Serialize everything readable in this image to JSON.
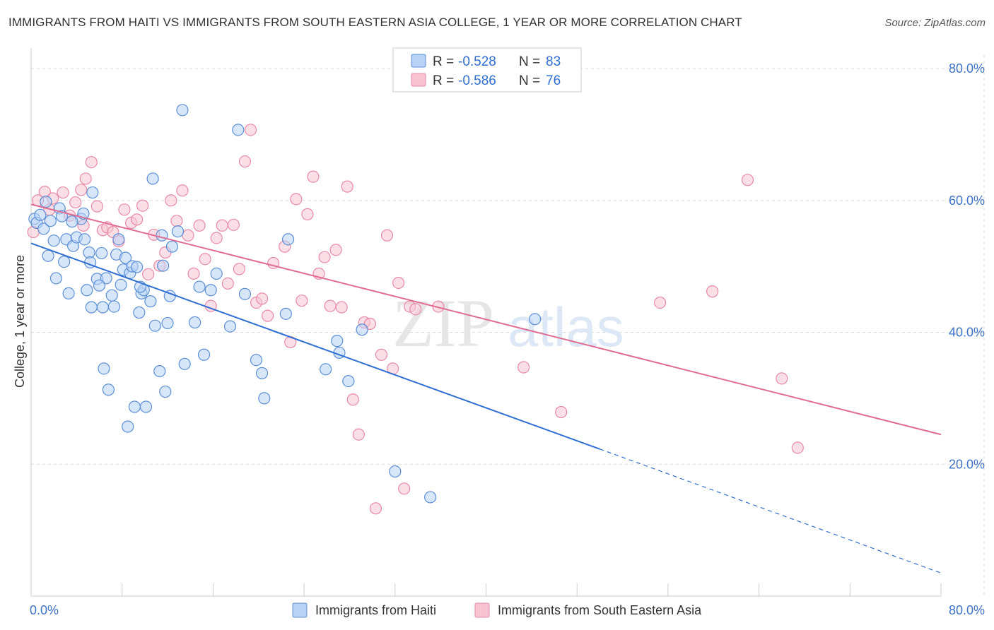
{
  "title": "IMMIGRANTS FROM HAITI VS IMMIGRANTS FROM SOUTH EASTERN ASIA COLLEGE, 1 YEAR OR MORE CORRELATION CHART",
  "source": "Source: ZipAtlas.com",
  "watermark": "ZIPatlas",
  "colors": {
    "haiti_fill": "#b8d2f5",
    "haiti_stroke": "#5b8fd6",
    "haiti_line": "#2f6fd1",
    "sea_fill": "#f8c4d3",
    "sea_stroke": "#e88aa6",
    "sea_line": "#e06c92",
    "label_blue": "#3f73c8",
    "grid": "#dddddd"
  },
  "legend": {
    "r_label": "R =",
    "n_label": "N =",
    "haiti": {
      "r": "-0.528",
      "n": "83"
    },
    "sea": {
      "r": "-0.586",
      "n": "76"
    }
  },
  "chart_data": {
    "type": "scatter",
    "title": "IMMIGRANTS FROM HAITI VS IMMIGRANTS FROM SOUTH EASTERN ASIA COLLEGE, 1 YEAR OR MORE CORRELATION CHART",
    "xlabel": "",
    "ylabel": "College, 1 year or more",
    "xlim": [
      0,
      80
    ],
    "ylim": [
      0,
      80
    ],
    "x_tick_labels": [
      "0.0%",
      "80.0%"
    ],
    "y_tick_labels": [
      "20.0%",
      "40.0%",
      "60.0%",
      "80.0%"
    ],
    "y_ticks": [
      20,
      40,
      60,
      80
    ],
    "grid": true,
    "legend_position": "top-center",
    "series": [
      {
        "name": "Immigrants from Haiti",
        "r": -0.528,
        "n": 83,
        "trend": {
          "x0": 0,
          "y0": 53.5,
          "x1": 50,
          "y1": 22.3,
          "dash_to_x": 80,
          "dash_to_y": 3.5
        },
        "points": [
          [
            0.3,
            57.2
          ],
          [
            0.5,
            56.6
          ],
          [
            0.8,
            57.8
          ],
          [
            1.1,
            55.7
          ],
          [
            1.3,
            59.8
          ],
          [
            1.5,
            51.6
          ],
          [
            1.7,
            56.9
          ],
          [
            2.2,
            48.2
          ],
          [
            2.5,
            58.8
          ],
          [
            2.7,
            57.6
          ],
          [
            2.9,
            50.7
          ],
          [
            3.1,
            54.1
          ],
          [
            3.3,
            45.9
          ],
          [
            3.7,
            53.1
          ],
          [
            4.0,
            54.4
          ],
          [
            4.4,
            57.2
          ],
          [
            4.6,
            58.0
          ],
          [
            4.7,
            54.1
          ],
          [
            4.9,
            46.4
          ],
          [
            5.1,
            52.1
          ],
          [
            5.2,
            50.6
          ],
          [
            5.3,
            43.8
          ],
          [
            5.4,
            61.2
          ],
          [
            5.8,
            48.1
          ],
          [
            6.2,
            52.0
          ],
          [
            6.3,
            43.8
          ],
          [
            6.4,
            34.5
          ],
          [
            6.6,
            48.2
          ],
          [
            6.8,
            31.3
          ],
          [
            7.1,
            45.6
          ],
          [
            7.3,
            43.9
          ],
          [
            7.5,
            51.8
          ],
          [
            7.7,
            54.1
          ],
          [
            7.9,
            47.2
          ],
          [
            8.1,
            49.5
          ],
          [
            8.3,
            51.3
          ],
          [
            8.5,
            25.7
          ],
          [
            8.7,
            49.0
          ],
          [
            8.9,
            50.0
          ],
          [
            9.1,
            28.7
          ],
          [
            9.3,
            49.9
          ],
          [
            9.5,
            43.0
          ],
          [
            9.7,
            45.9
          ],
          [
            9.9,
            46.4
          ],
          [
            10.1,
            28.7
          ],
          [
            10.5,
            44.7
          ],
          [
            10.7,
            63.3
          ],
          [
            10.9,
            41.0
          ],
          [
            11.3,
            34.1
          ],
          [
            11.5,
            54.7
          ],
          [
            11.6,
            50.1
          ],
          [
            11.8,
            31.0
          ],
          [
            12.0,
            41.4
          ],
          [
            12.2,
            45.5
          ],
          [
            12.4,
            53.0
          ],
          [
            12.9,
            55.3
          ],
          [
            13.3,
            73.7
          ],
          [
            13.5,
            35.2
          ],
          [
            14.4,
            41.5
          ],
          [
            14.8,
            46.9
          ],
          [
            15.2,
            36.6
          ],
          [
            15.8,
            46.4
          ],
          [
            16.3,
            48.9
          ],
          [
            17.5,
            40.9
          ],
          [
            18.2,
            70.7
          ],
          [
            18.8,
            45.8
          ],
          [
            19.8,
            35.8
          ],
          [
            20.3,
            33.8
          ],
          [
            20.5,
            30.0
          ],
          [
            22.4,
            42.8
          ],
          [
            22.6,
            54.1
          ],
          [
            25.9,
            34.4
          ],
          [
            26.9,
            38.7
          ],
          [
            27.1,
            36.9
          ],
          [
            27.9,
            32.6
          ],
          [
            29.1,
            40.4
          ],
          [
            32.0,
            18.9
          ],
          [
            35.1,
            15.0
          ],
          [
            44.3,
            42.0
          ],
          [
            3.6,
            56.8
          ],
          [
            2.0,
            53.9
          ],
          [
            6.0,
            47.1
          ],
          [
            9.6,
            46.9
          ]
        ]
      },
      {
        "name": "Immigrants from South Eastern Asia",
        "r": -0.586,
        "n": 76,
        "trend": {
          "x0": 0,
          "y0": 59.4,
          "x1": 80,
          "y1": 24.5
        },
        "points": [
          [
            0.2,
            55.2
          ],
          [
            0.6,
            60.0
          ],
          [
            1.2,
            61.3
          ],
          [
            1.9,
            60.3
          ],
          [
            2.8,
            61.2
          ],
          [
            3.4,
            57.7
          ],
          [
            3.9,
            59.7
          ],
          [
            4.4,
            61.6
          ],
          [
            4.8,
            63.3
          ],
          [
            5.3,
            65.8
          ],
          [
            5.8,
            59.1
          ],
          [
            6.3,
            55.5
          ],
          [
            6.7,
            55.9
          ],
          [
            7.2,
            55.2
          ],
          [
            7.7,
            53.8
          ],
          [
            8.2,
            58.6
          ],
          [
            8.8,
            56.6
          ],
          [
            9.3,
            57.1
          ],
          [
            9.8,
            59.2
          ],
          [
            10.3,
            48.8
          ],
          [
            10.8,
            54.8
          ],
          [
            11.3,
            50.1
          ],
          [
            11.8,
            52.1
          ],
          [
            12.3,
            60.0
          ],
          [
            12.8,
            56.9
          ],
          [
            13.3,
            61.5
          ],
          [
            13.8,
            54.7
          ],
          [
            14.3,
            48.9
          ],
          [
            14.8,
            56.2
          ],
          [
            15.3,
            51.1
          ],
          [
            15.8,
            44.0
          ],
          [
            16.3,
            54.3
          ],
          [
            16.8,
            56.2
          ],
          [
            17.3,
            47.4
          ],
          [
            17.8,
            56.3
          ],
          [
            18.3,
            49.6
          ],
          [
            18.8,
            65.9
          ],
          [
            19.3,
            70.7
          ],
          [
            19.8,
            44.5
          ],
          [
            20.3,
            45.1
          ],
          [
            20.8,
            42.5
          ],
          [
            21.3,
            50.5
          ],
          [
            22.3,
            53.0
          ],
          [
            22.8,
            38.5
          ],
          [
            23.3,
            60.2
          ],
          [
            23.8,
            44.8
          ],
          [
            24.3,
            57.9
          ],
          [
            24.8,
            63.6
          ],
          [
            25.3,
            48.9
          ],
          [
            25.8,
            51.4
          ],
          [
            26.3,
            44.0
          ],
          [
            26.8,
            52.5
          ],
          [
            27.3,
            43.8
          ],
          [
            27.8,
            62.1
          ],
          [
            28.3,
            29.8
          ],
          [
            28.8,
            24.5
          ],
          [
            29.3,
            41.5
          ],
          [
            29.8,
            41.3
          ],
          [
            30.3,
            13.3
          ],
          [
            30.8,
            36.6
          ],
          [
            31.3,
            54.7
          ],
          [
            31.8,
            34.5
          ],
          [
            32.3,
            47.5
          ],
          [
            32.8,
            16.3
          ],
          [
            33.3,
            43.9
          ],
          [
            33.8,
            43.5
          ],
          [
            35.8,
            43.9
          ],
          [
            43.3,
            34.7
          ],
          [
            46.6,
            27.9
          ],
          [
            55.3,
            44.5
          ],
          [
            59.9,
            46.2
          ],
          [
            63.0,
            63.1
          ],
          [
            66.0,
            33.0
          ],
          [
            67.4,
            22.5
          ],
          [
            4.6,
            56.2
          ],
          [
            1.6,
            58.6
          ]
        ]
      }
    ]
  },
  "bottom_legend": {
    "haiti": "Immigrants from Haiti",
    "sea": "Immigrants from South Eastern Asia"
  }
}
